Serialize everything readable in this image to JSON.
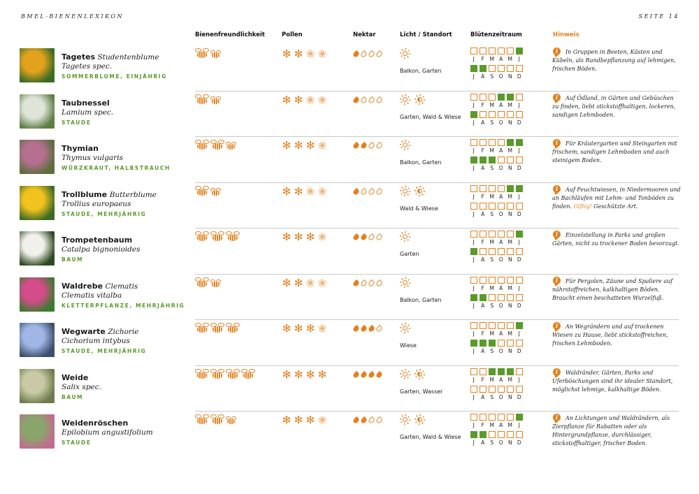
{
  "header": {
    "left": "BMEL-BIENENLEXIKON",
    "right": "SEITE 14"
  },
  "columns": {
    "bee_friendliness": "Bienenfreundlichkeit",
    "pollen": "Pollen",
    "nectar": "Nektar",
    "light_location": "Licht / Standort",
    "bloom_period": "Blütenzeitraum",
    "hint": "Hinweis"
  },
  "colors": {
    "accent": "#e5801e",
    "green": "#5a9a2a",
    "divider": "#c9c9c9"
  },
  "legend": {
    "note": "bee count = bee friendliness; filled flowers = pollen level; filled drops = nectar level; sun icons = light"
  },
  "month_labels_first": [
    "J",
    "F",
    "M",
    "A",
    "M",
    "J"
  ],
  "month_labels_second": [
    "J",
    "A",
    "S",
    "O",
    "N",
    "D"
  ],
  "plants": [
    {
      "name": "Tagetes",
      "name_suffix": "Studentenblume",
      "latin": "Tagetes spec.",
      "category": "SOMMERBLUME, EINJÄHRIG",
      "bees": [
        1,
        0
      ],
      "pollen": [
        1,
        1,
        0,
        0
      ],
      "nectar": [
        1,
        0,
        0,
        0
      ],
      "suns": [
        "sun"
      ],
      "location": "Balkon, Garten",
      "months": [
        0,
        0,
        0,
        0,
        0,
        1,
        1,
        1,
        0,
        0,
        0,
        0
      ],
      "hint": "In Gruppen in Beeten, Kästen und Kübeln, als Randbepflanzung auf lehmigen, frischen Böden.",
      "thumb": [
        "#e3a21c",
        "#3a6b23"
      ]
    },
    {
      "name": "Taubnessel",
      "name_suffix": "",
      "latin": "Lamium spec.",
      "category": "STAUDE",
      "bees": [
        1,
        0
      ],
      "pollen": [
        1,
        1,
        0,
        0
      ],
      "nectar": [
        1,
        0,
        0,
        0
      ],
      "suns": [
        "sun",
        "half"
      ],
      "location": "Garten, Wald & Wiese",
      "months": [
        0,
        0,
        0,
        1,
        1,
        0,
        1,
        0,
        0,
        0,
        0,
        0
      ],
      "hint": "Auf Ödland, in Gärten und Gebüschen zu finden, liebt stickstoffhaltigen, lockeren, sandigen Lehmboden.",
      "thumb": [
        "#dfe4d8",
        "#5f7d45"
      ]
    },
    {
      "name": "Thymian",
      "name_suffix": "",
      "latin": "Thymus vulgaris",
      "category": "WÜRZKRAUT, HALBSTRAUCH",
      "bees": [
        1,
        1,
        0
      ],
      "pollen": [
        1,
        1,
        1,
        0
      ],
      "nectar": [
        1,
        1,
        0,
        0
      ],
      "suns": [
        "sun"
      ],
      "location": "Balkon, Garten",
      "months": [
        0,
        0,
        0,
        0,
        1,
        1,
        1,
        1,
        1,
        0,
        0,
        0
      ],
      "hint": "Für Kräutergarten und Steingarten mit frischem, sandigen Lehmboden und auch steinigem Boden.",
      "thumb": [
        "#b56f8f",
        "#5b6e3d"
      ]
    },
    {
      "name": "Trollblume",
      "name_suffix": "Butterblume",
      "latin": "Trollius europaeus",
      "category": "STAUDE, MEHRJÄHRIG",
      "bees": [
        1,
        0
      ],
      "pollen": [
        1,
        1,
        0,
        0
      ],
      "nectar": [
        1,
        0,
        0,
        0
      ],
      "suns": [
        "sun",
        "half"
      ],
      "location": "Wald & Wiese",
      "months": [
        0,
        0,
        0,
        0,
        1,
        1,
        0,
        0,
        0,
        0,
        0,
        0
      ],
      "hint": "Auf Feuchtwiesen, in Niedermooren und an Bachläufen mit Lehm- und Tonböden zu finden.",
      "hint_warn": "Giftig!",
      "hint_after": "Geschützte Art.",
      "thumb": [
        "#f2c21e",
        "#3f6b25"
      ]
    },
    {
      "name": "Trompetenbaum",
      "name_suffix": "",
      "latin": "Catalpa bignonioides",
      "category": "BAUM",
      "bees": [
        1,
        1,
        1
      ],
      "pollen": [
        1,
        1,
        1,
        0
      ],
      "nectar": [
        1,
        1,
        0,
        0
      ],
      "suns": [
        "sun"
      ],
      "location": "Garten",
      "months": [
        0,
        0,
        0,
        0,
        0,
        1,
        1,
        0,
        0,
        0,
        0,
        0
      ],
      "hint": "Einzelstellung in Parks und großen Gärten, nicht zu trockener Boden bevorzugt.",
      "thumb": [
        "#f1f0ea",
        "#2f4a22"
      ]
    },
    {
      "name": "Waldrebe",
      "name_suffix": "Clematis",
      "latin": "Clematis vitalba",
      "category": "KLETTERPFLANZE, MEHRJÄHRIG",
      "bees": [
        1,
        0
      ],
      "pollen": [
        1,
        1,
        0,
        0
      ],
      "nectar": [
        1,
        0,
        0,
        0
      ],
      "suns": [
        "sun"
      ],
      "location": "Balkon, Garten",
      "months": [
        0,
        0,
        0,
        0,
        0,
        0,
        1,
        1,
        0,
        0,
        0,
        0
      ],
      "hint": "Für Pergolen, Zäune und Spaliere auf nährstoffreichen, kalkhaltigen Böden. Braucht einen beschatteten Wurzelfuß.",
      "thumb": [
        "#d44c8a",
        "#3c7a2e"
      ]
    },
    {
      "name": "Wegwarte",
      "name_suffix": "Zichorie",
      "latin": "Cichorium intybus",
      "category": "STAUDE, MEHRJÄHRIG",
      "bees": [
        1,
        1,
        1
      ],
      "pollen": [
        1,
        1,
        1,
        0
      ],
      "nectar": [
        1,
        1,
        1,
        0
      ],
      "suns": [
        "sun"
      ],
      "location": "Wiese",
      "months": [
        0,
        0,
        0,
        0,
        0,
        1,
        1,
        1,
        1,
        0,
        0,
        0
      ],
      "hint": "An Wegrändern und auf trockenen Wiesen zu Hause, liebt stickstoffreichen, frischen Lehmboden.",
      "thumb": [
        "#9fb6e6",
        "#3e4f6b"
      ]
    },
    {
      "name": "Weide",
      "name_suffix": "",
      "latin": "Salix spec.",
      "category": "BAUM",
      "bees": [
        1,
        1,
        1,
        1
      ],
      "pollen": [
        1,
        1,
        1,
        1
      ],
      "nectar": [
        1,
        1,
        1,
        1
      ],
      "suns": [
        "sun",
        "half"
      ],
      "location": "Garten, Wasser",
      "months": [
        0,
        0,
        1,
        1,
        1,
        0,
        0,
        0,
        0,
        0,
        0,
        0
      ],
      "hint": "Waldränder, Gärten, Parks und Uferböschungen sind ihr idealer Standort, möglichst lehmige, kalkhaltige Böden.",
      "thumb": [
        "#c9c9a6",
        "#6f7b4b"
      ]
    },
    {
      "name": "Weidenröschen",
      "name_suffix": "",
      "latin": "Epilobium angustifolium",
      "category": "STAUDE",
      "bees": [
        1,
        1,
        0
      ],
      "pollen": [
        1,
        1,
        1,
        0
      ],
      "nectar": [
        1,
        1,
        0,
        0
      ],
      "suns": [
        "sun",
        "half"
      ],
      "location": "Garten, Wald & Wiese",
      "months": [
        0,
        0,
        0,
        0,
        0,
        1,
        1,
        1,
        0,
        0,
        0,
        0
      ],
      "hint": "An Lichtungen und Waldrändern, als Zierpflanze für Rabatten oder als Hintergrundpflanze, durchlässiger, stickstoffhaltiger, frischer Boden.",
      "thumb": [
        "#8aa56b",
        "#c26b8f"
      ]
    }
  ]
}
